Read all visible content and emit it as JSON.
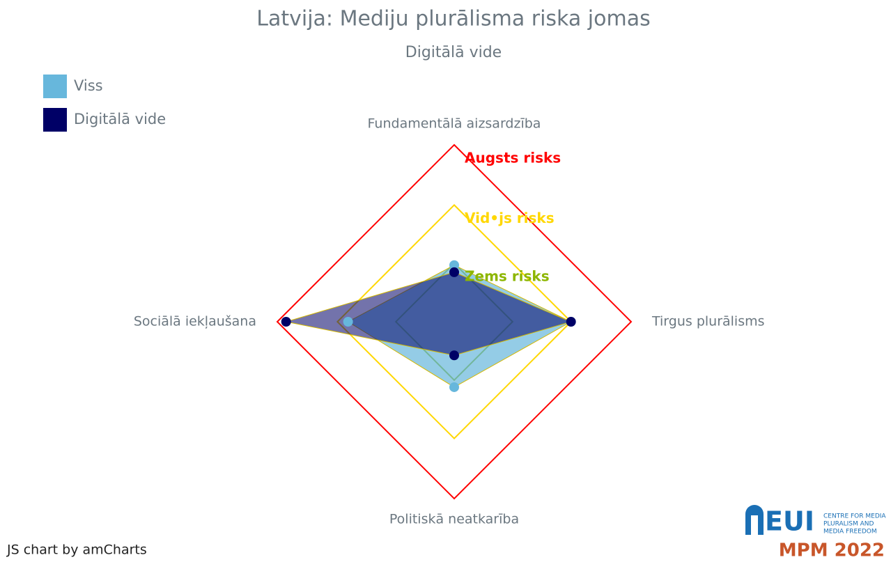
{
  "chart_data": {
    "type": "radar",
    "title": "Latvija: Mediju plurālisma riska jomas",
    "subtitle": "Digitālā vide",
    "categories": [
      "Fundamentālā aizsardzība",
      "Tirgus plurālisms",
      "Politiskā neatkarība",
      "Sociālā iekļaušana"
    ],
    "series": [
      {
        "name": "Viss",
        "color": "#67b7dc",
        "values": [
          32,
          66,
          37,
          60
        ]
      },
      {
        "name": "Digitālā vide",
        "color": "#000066",
        "values": [
          28,
          66,
          19,
          95
        ]
      }
    ],
    "rlim": [
      0,
      100
    ],
    "bands": [
      {
        "value": 100,
        "label": "Augsts risks",
        "color": "#ff0000"
      },
      {
        "value": 66,
        "label": "Vid•js risks",
        "color": "#ffd700"
      },
      {
        "value": 33,
        "label": "Zems risks",
        "color": "#8db600"
      }
    ],
    "legend": "top-left",
    "credit": "JS chart by amCharts"
  },
  "logo": {
    "name": "EUI",
    "lines": [
      "CENTRE FOR MEDIA",
      "PLURALISM AND",
      "MEDIA FREEDOM"
    ],
    "edition": "MPM 2022"
  }
}
